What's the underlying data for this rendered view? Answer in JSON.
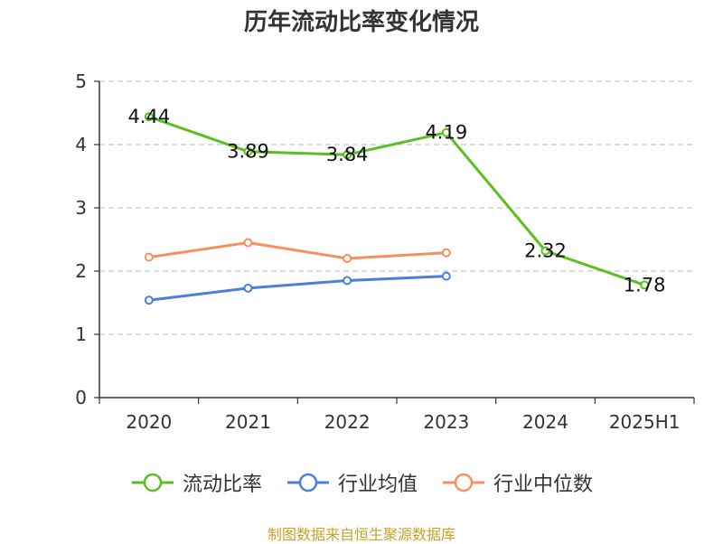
{
  "title": "历年流动比率变化情况",
  "source": "制图数据来自恒生聚源数据库",
  "chart_data": {
    "type": "line",
    "categories": [
      "2020",
      "2021",
      "2022",
      "2023",
      "2024",
      "2025H1"
    ],
    "ylim": [
      0,
      5
    ],
    "yticks": [
      0,
      1,
      2,
      3,
      4,
      5
    ],
    "grid": true,
    "legend_position": "bottom",
    "series": [
      {
        "name": "流动比率",
        "color": "#5bbf21",
        "values": [
          4.44,
          3.89,
          3.84,
          4.19,
          2.32,
          1.78
        ],
        "labels": [
          "4.44",
          "3.89",
          "3.84",
          "4.19",
          "2.32",
          "1.78"
        ]
      },
      {
        "name": "行业均值",
        "color": "#4a7fdc",
        "values": [
          1.54,
          1.73,
          1.85,
          1.92,
          null,
          null
        ]
      },
      {
        "name": "行业中位数",
        "color": "#f79060",
        "values": [
          2.22,
          2.45,
          2.2,
          2.29,
          null,
          null
        ]
      }
    ]
  }
}
